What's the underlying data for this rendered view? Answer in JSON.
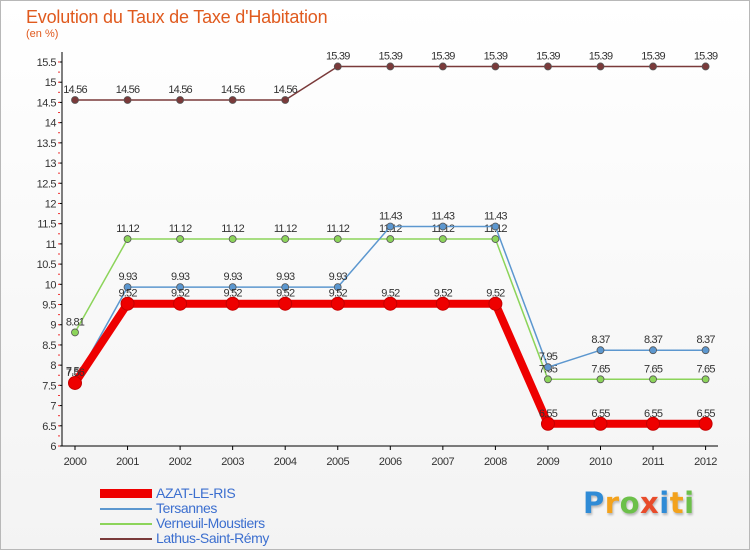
{
  "chart_data": {
    "type": "line",
    "title": "Evolution du Taux de Taxe d'Habitation",
    "ylabel": "(en %)",
    "xlabel": "",
    "ylim": [
      6,
      15.5
    ],
    "yticks": [
      "6",
      "6.5",
      "7",
      "7.5",
      "8",
      "8.5",
      "9",
      "9.5",
      "10",
      "10.5",
      "11",
      "11.5",
      "12",
      "12.5",
      "13",
      "13.5",
      "14",
      "14.5",
      "15",
      "15.5"
    ],
    "categories": [
      "2000",
      "2001",
      "2002",
      "2003",
      "2004",
      "2005",
      "2006",
      "2007",
      "2008",
      "2009",
      "2010",
      "2011",
      "2012"
    ],
    "series": [
      {
        "name": "Lathus-Saint-Rémy",
        "color": "#7a3a3a",
        "values": [
          14.56,
          14.56,
          14.56,
          14.56,
          14.56,
          15.39,
          15.39,
          15.39,
          15.39,
          15.39,
          15.39,
          15.39,
          15.39
        ],
        "labels": [
          "14.56",
          "14.56",
          "14.56",
          "14.56",
          "14.56",
          "15.39",
          "15.39",
          "15.39",
          "15.39",
          "15.39",
          "15.39",
          "15.39",
          "15.39"
        ]
      },
      {
        "name": "Verneuil-Moustiers",
        "color": "#8cd45a",
        "values": [
          8.81,
          11.12,
          11.12,
          11.12,
          11.12,
          11.12,
          11.12,
          11.12,
          11.12,
          7.65,
          7.65,
          7.65,
          7.65
        ],
        "labels": [
          "8.81",
          "11.12",
          "11.12",
          "11.12",
          "11.12",
          "11.12",
          "11.12",
          "11.12",
          "11.12",
          "7.65",
          "7.65",
          "7.65",
          "7.65"
        ]
      },
      {
        "name": "Tersannes",
        "color": "#5c97cf",
        "values": [
          7.59,
          9.93,
          9.93,
          9.93,
          9.93,
          9.93,
          11.43,
          11.43,
          11.43,
          7.95,
          8.37,
          8.37,
          8.37
        ],
        "labels": [
          "7.59",
          "9.93",
          "9.93",
          "9.93",
          "9.93",
          "9.93",
          "11.43",
          "11.43",
          "11.43",
          "7.95",
          "8.37",
          "8.37",
          "8.37"
        ]
      },
      {
        "name": "AZAT-LE-RIS",
        "color": "#ee0000",
        "values": [
          7.56,
          9.52,
          9.52,
          9.52,
          9.52,
          9.52,
          9.52,
          9.52,
          9.52,
          6.55,
          6.55,
          6.55,
          6.55
        ],
        "labels": [
          "7.56",
          "9.52",
          "9.52",
          "9.52",
          "9.52",
          "9.52",
          "9.52",
          "9.52",
          "9.52",
          "6.55",
          "6.55",
          "6.55",
          "6.55"
        ]
      }
    ],
    "legend": [
      "AZAT-LE-RIS",
      "Tersannes",
      "Verneuil-Moustiers",
      "Lathus-Saint-Rémy"
    ],
    "legend_position": "bottom-left",
    "grid": false
  },
  "logo": {
    "letters": [
      "P",
      "r",
      "o",
      "x",
      "i",
      "t",
      "i"
    ],
    "colors": [
      "#2f8bd6",
      "#f3a21c",
      "#6cc04a",
      "#e84b2a",
      "#2f8bd6",
      "#f3a21c",
      "#6cc04a"
    ]
  }
}
